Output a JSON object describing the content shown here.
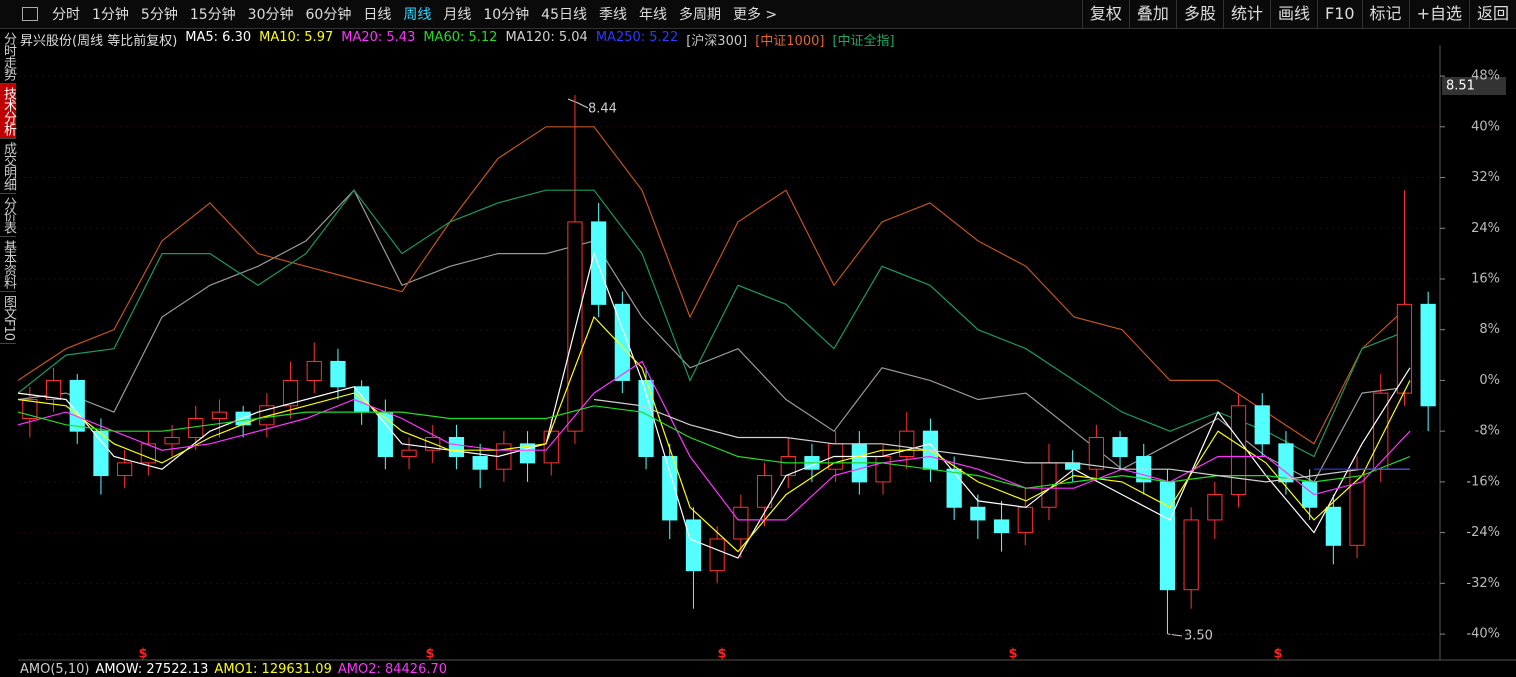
{
  "toolbar": {
    "periods": [
      "分时",
      "1分钟",
      "5分钟",
      "15分钟",
      "30分钟",
      "60分钟",
      "日线",
      "周线",
      "月线",
      "10分钟",
      "45日线",
      "季线",
      "年线",
      "多周期",
      "更多 >"
    ],
    "active_period_index": 7,
    "tools": [
      "复权",
      "叠加",
      "多股",
      "统计",
      "画线",
      "F10",
      "标记",
      "+自选",
      "返回"
    ]
  },
  "side_tabs": [
    "分时走势",
    "技术分析",
    "成交明细",
    "分价表",
    "基本资料",
    "图文F10"
  ],
  "active_tab_index": 1,
  "legend": {
    "stock": "昇兴股份(周线 等比前复权)",
    "ma": [
      {
        "label": "MA5: 6.30",
        "color": "#ffffff"
      },
      {
        "label": "MA10: 5.97",
        "color": "#ffff00"
      },
      {
        "label": "MA20: 5.43",
        "color": "#ff33ff"
      },
      {
        "label": "MA60: 5.12",
        "color": "#22dd22"
      },
      {
        "label": "MA120: 5.04",
        "color": "#d0d0d0"
      },
      {
        "label": "MA250: 5.22",
        "color": "#2a3cff"
      }
    ],
    "compare": [
      {
        "label": "[沪深300]",
        "color": "#c8c8c8"
      },
      {
        "label": "[中证1000]",
        "color": "#e0662a"
      },
      {
        "label": "[中证全指]",
        "color": "#1fa866"
      }
    ]
  },
  "annotations": {
    "high": "8.44",
    "low": "3.50",
    "price": "8.51"
  },
  "event_markers": [
    "$",
    "$",
    "$",
    "$",
    "$"
  ],
  "indicator": {
    "name": "AMO(5,10)",
    "items": [
      {
        "label": "AMOW: 27522.13",
        "color": "#ffffff"
      },
      {
        "label": "AMO1: 129631.09",
        "color": "#ffff00"
      },
      {
        "label": "AMO2: 84426.70",
        "color": "#ff33ff"
      }
    ]
  },
  "chart_data": {
    "type": "candlestick",
    "ylim": [
      -43.3,
      52.9
    ],
    "grid": true,
    "yticks": [
      {
        "value": 48,
        "label": "48%"
      },
      {
        "value": 40,
        "label": "40%"
      },
      {
        "value": 32,
        "label": "32%"
      },
      {
        "value": 24,
        "label": "24%"
      },
      {
        "value": 16,
        "label": "16%"
      },
      {
        "value": 8,
        "label": "8%"
      },
      {
        "value": 0,
        "label": "0%"
      },
      {
        "value": -8,
        "label": "-8%"
      },
      {
        "value": -16,
        "label": "-16%"
      },
      {
        "value": -24,
        "label": "-24%"
      },
      {
        "value": -32,
        "label": "-32%"
      },
      {
        "value": -40,
        "label": "-40%"
      }
    ],
    "up_color": "#ff3232",
    "down_color": "#54ffff",
    "open": [
      -6,
      -3,
      0,
      -8,
      -15,
      -13,
      -10,
      -9,
      -6,
      -5,
      -7,
      -4,
      0,
      3,
      -1,
      -5,
      -12,
      -11,
      -9,
      -12,
      -14,
      -10,
      -13,
      -8,
      25,
      12,
      0,
      -12,
      -22,
      -30,
      -25,
      -20,
      -15,
      -12,
      -14,
      -10,
      -16,
      -12,
      -8,
      -14,
      -20,
      -22,
      -24,
      -20,
      -13,
      -14,
      -9,
      -12,
      -16,
      -33,
      -22,
      -18,
      -4,
      -10,
      -16,
      -20,
      -26,
      -14,
      -2,
      12
    ],
    "high": [
      -1,
      2,
      1,
      -6,
      -11,
      -8,
      -7,
      -4,
      -3,
      -4,
      -2,
      3,
      6,
      5,
      0,
      -3,
      -9,
      -7,
      -7,
      -10,
      -8,
      -8,
      -6,
      45,
      28,
      14,
      2,
      -10,
      -20,
      -23,
      -18,
      -13,
      -9,
      -10,
      -8,
      -8,
      -10,
      -5,
      -6,
      -12,
      -18,
      -19,
      -17,
      -10,
      -11,
      -7,
      -8,
      -10,
      -14,
      -20,
      -16,
      -2,
      -2,
      -8,
      -14,
      -18,
      -12,
      1,
      30,
      14
    ],
    "low": [
      -9,
      -5,
      -10,
      -18,
      -17,
      -15,
      -12,
      -11,
      -9,
      -9,
      -9,
      -6,
      -2,
      -3,
      -7,
      -14,
      -14,
      -13,
      -14,
      -17,
      -16,
      -16,
      -15,
      -10,
      10,
      -2,
      -14,
      -25,
      -36,
      -32,
      -28,
      -23,
      -17,
      -16,
      -16,
      -18,
      -18,
      -14,
      -16,
      -22,
      -25,
      -27,
      -26,
      -22,
      -16,
      -16,
      -14,
      -18,
      -40,
      -36,
      -25,
      -20,
      -12,
      -18,
      -22,
      -29,
      -28,
      -16,
      -4,
      -8
    ],
    "close": [
      -3,
      0,
      -8,
      -15,
      -13,
      -10,
      -9,
      -6,
      -5,
      -7,
      -4,
      0,
      3,
      -1,
      -5,
      -12,
      -11,
      -9,
      -12,
      -14,
      -10,
      -13,
      -8,
      25,
      12,
      0,
      -12,
      -22,
      -30,
      -25,
      -20,
      -15,
      -12,
      -14,
      -10,
      -16,
      -12,
      -8,
      -14,
      -20,
      -22,
      -24,
      -20,
      -13,
      -14,
      -9,
      -12,
      -16,
      -33,
      -22,
      -18,
      -4,
      -10,
      -16,
      -20,
      -26,
      -14,
      -2,
      12,
      -4
    ],
    "compare_lines": [
      {
        "color": "#9a9a9a",
        "values": [
          -3,
          -2,
          -5,
          10,
          15,
          18,
          22,
          30,
          15,
          18,
          20,
          20,
          22,
          10,
          2,
          5,
          -3,
          -8,
          2,
          0,
          -3,
          -2,
          -8,
          -14,
          -10,
          -6,
          -12,
          -16,
          -2,
          -1
        ]
      },
      {
        "color": "#c0551e",
        "values": [
          0,
          5,
          8,
          22,
          28,
          20,
          18,
          16,
          14,
          25,
          35,
          40,
          40,
          30,
          10,
          25,
          30,
          15,
          25,
          28,
          22,
          18,
          10,
          8,
          0,
          0,
          -5,
          -10,
          5,
          12
        ]
      },
      {
        "color": "#1a9a5e",
        "values": [
          -2,
          4,
          5,
          20,
          20,
          15,
          20,
          30,
          20,
          25,
          28,
          30,
          30,
          20,
          0,
          15,
          12,
          5,
          18,
          15,
          8,
          5,
          0,
          -5,
          -8,
          -5,
          -8,
          -12,
          5,
          8
        ]
      }
    ],
    "ma_lines": [
      {
        "color": "#ffffff",
        "values": [
          -2,
          -3,
          -12,
          -14,
          -8,
          -5,
          -3,
          -1,
          -10,
          -11,
          -12,
          -10,
          20,
          0,
          -25,
          -28,
          -15,
          -12,
          -12,
          -10,
          -19,
          -20,
          -14,
          -18,
          -22,
          -5,
          -15,
          -24,
          -10,
          2
        ]
      },
      {
        "color": "#ffff00",
        "values": [
          -3,
          -4,
          -10,
          -13,
          -9,
          -6,
          -4,
          -2,
          -8,
          -11,
          -11,
          -10,
          10,
          2,
          -20,
          -27,
          -18,
          -13,
          -11,
          -11,
          -16,
          -19,
          -15,
          -16,
          -20,
          -8,
          -13,
          -22,
          -15,
          0
        ]
      },
      {
        "color": "#ff33ff",
        "values": [
          -7,
          -5,
          -8,
          -11,
          -10,
          -8,
          -6,
          -3,
          -6,
          -10,
          -11,
          -11,
          -2,
          3,
          -12,
          -22,
          -22,
          -15,
          -13,
          -12,
          -14,
          -17,
          -17,
          -14,
          -16,
          -12,
          -12,
          -18,
          -16,
          -8
        ]
      },
      {
        "color": "#22dd22",
        "values": [
          -5,
          -7,
          -8,
          -8,
          -7,
          -6,
          -5,
          -5,
          -5,
          -6,
          -6,
          -6,
          -4,
          -5,
          -9,
          -12,
          -13,
          -13,
          -13,
          -14,
          -15,
          -17,
          -16,
          -15,
          -16,
          -15,
          -15,
          -16,
          -15,
          -12
        ]
      },
      {
        "color": "#d0d0d0",
        "values": [
          null,
          null,
          null,
          null,
          null,
          null,
          null,
          null,
          null,
          null,
          null,
          null,
          -3,
          -4,
          -7,
          -9,
          -9,
          -10,
          -10,
          -11,
          -12,
          -13,
          -13,
          -14,
          -14,
          -15,
          -16,
          -15,
          -14,
          -14
        ]
      },
      {
        "color": "#2a3cff",
        "values": [
          null,
          null,
          null,
          null,
          null,
          null,
          null,
          null,
          null,
          null,
          null,
          null,
          null,
          null,
          null,
          null,
          null,
          null,
          null,
          null,
          null,
          null,
          null,
          null,
          null,
          null,
          null,
          -14,
          -14,
          -14
        ]
      }
    ]
  }
}
